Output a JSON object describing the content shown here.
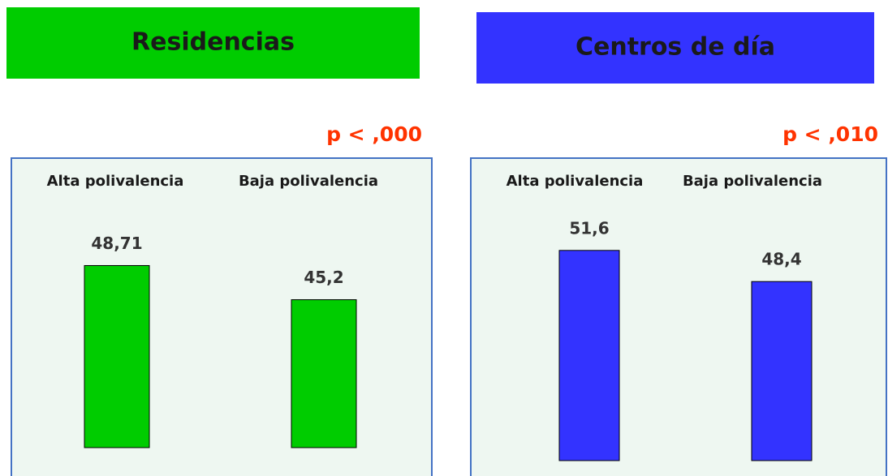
{
  "chart_data": [
    {
      "type": "bar",
      "title": "Residencias",
      "annotation": "p < ,000",
      "categories": [
        "Alta polivalencia",
        "Baja polivalencia"
      ],
      "values": [
        48.71,
        45.2
      ],
      "value_labels": [
        "48,71",
        "45,2"
      ],
      "color": "#00cc00",
      "ylim": [
        30,
        55
      ]
    },
    {
      "type": "bar",
      "title": "Centros de día",
      "annotation": "p < ,010",
      "categories": [
        "Alta polivalencia",
        "Baja polivalencia"
      ],
      "values": [
        51.6,
        48.4
      ],
      "value_labels": [
        "51,6",
        "48,4"
      ],
      "color": "#3333ff",
      "ylim": [
        30,
        55
      ]
    }
  ]
}
